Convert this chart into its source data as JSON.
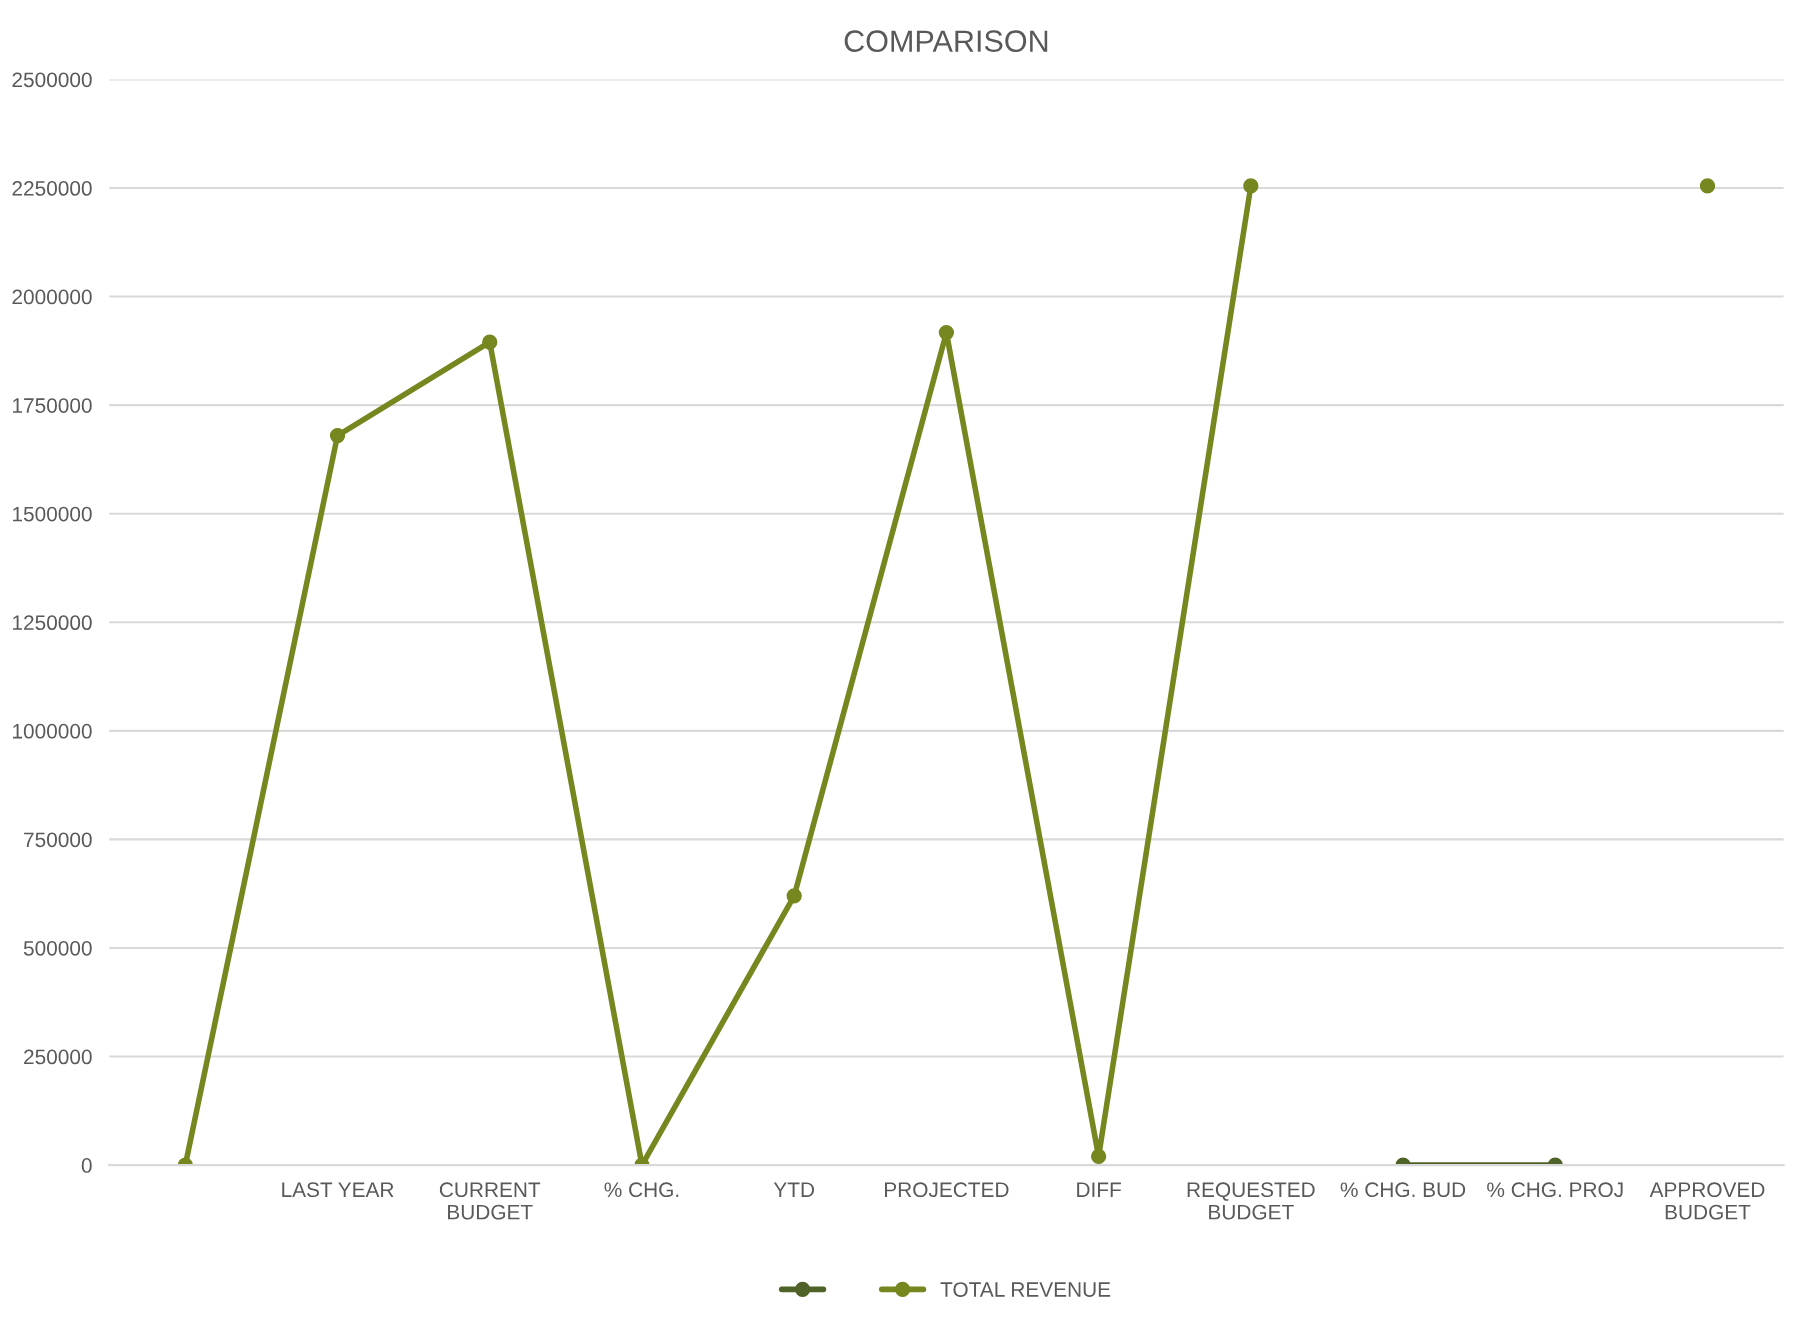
{
  "chart_data": {
    "type": "line",
    "title": "COMPARISON",
    "categories": [
      null,
      "LAST YEAR",
      "CURRENT\nBUDGET",
      "% CHG.",
      "YTD",
      "PROJECTED",
      "DIFF",
      "REQUESTED\nBUDGET",
      "% CHG. BUD",
      "% CHG. PROJ",
      "APPROVED\nBUDGET"
    ],
    "series": [
      {
        "color": "#4f6228",
        "values": [
          null,
          null,
          null,
          null,
          null,
          null,
          null,
          null,
          0,
          0,
          null
        ]
      },
      {
        "name": "TOTAL REVENUE",
        "color": "#76871f",
        "values": [
          0,
          1680000,
          1895000,
          0,
          620000,
          1917000,
          20000,
          2255000,
          null,
          null,
          2255000
        ]
      }
    ],
    "ylim": [
      0,
      2500000
    ],
    "yticks": [
      0,
      250000,
      500000,
      750000,
      1000000,
      1250000,
      1500000,
      1750000,
      2000000,
      2250000,
      2500000
    ],
    "grid": "y",
    "legend": "bottom",
    "marker": "circle",
    "line_style": "solid"
  }
}
